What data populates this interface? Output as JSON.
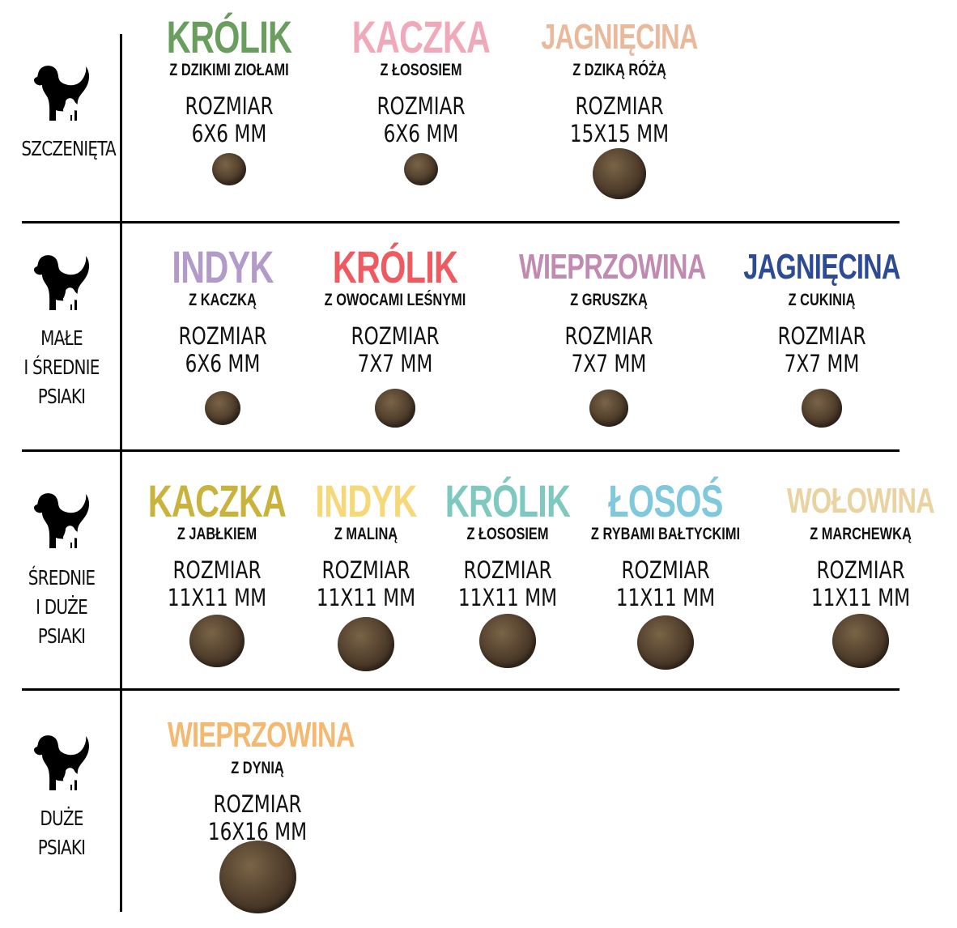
{
  "categories": [
    {
      "label_lines": [
        "SZCZENIĘTA"
      ],
      "icon": "dog-with-puppy-icon"
    },
    {
      "label_lines": [
        "MAŁE",
        "I ŚREDNIE",
        "PSIAKI"
      ],
      "icon": "dog-with-puppy-icon"
    },
    {
      "label_lines": [
        "ŚREDNIE",
        "I DUŻE",
        "PSIAKI"
      ],
      "icon": "dog-with-puppy-icon"
    },
    {
      "label_lines": [
        "DUŻE",
        "PSIAKI"
      ],
      "icon": "dog-with-puppy-icon"
    }
  ],
  "rows": [
    {
      "items": [
        {
          "name": "KRÓLIK",
          "subtitle": "Z DZIKIMI ZIOŁAMI",
          "size_label": "ROZMIAR",
          "size": "6X6 MM",
          "size_mm": 6,
          "color": "#6a9e5e"
        },
        {
          "name": "KACZKA",
          "subtitle": "Z ŁOSOSIEM",
          "size_label": "ROZMIAR",
          "size": "6X6 MM",
          "size_mm": 6,
          "color": "#f0a9ba"
        },
        {
          "name": "JAGNIĘCINA",
          "subtitle": "Z DZIKĄ RÓŻĄ",
          "size_label": "ROZMIAR",
          "size": "15X15 MM",
          "size_mm": 15,
          "color": "#e9b99c"
        }
      ]
    },
    {
      "items": [
        {
          "name": "INDYK",
          "subtitle": "Z KACZKĄ",
          "size_label": "ROZMIAR",
          "size": "6X6 MM",
          "size_mm": 6,
          "color": "#b39bc9"
        },
        {
          "name": "KRÓLIK",
          "subtitle": "Z OWOCAMI LEŚNYMI",
          "size_label": "ROZMIAR",
          "size": "7X7 MM",
          "size_mm": 7,
          "color": "#ee5a60"
        },
        {
          "name": "WIEPRZOWINA",
          "subtitle": "Z GRUSZKĄ",
          "size_label": "ROZMIAR",
          "size": "7X7 MM",
          "size_mm": 7,
          "color": "#c18bb1"
        },
        {
          "name": "JAGNIĘCINA",
          "subtitle": "Z CUKINIĄ",
          "size_label": "ROZMIAR",
          "size": "7X7 MM",
          "size_mm": 7,
          "color": "#2d4b95"
        }
      ]
    },
    {
      "items": [
        {
          "name": "KACZKA",
          "subtitle": "Z JABŁKIEM",
          "size_label": "ROZMIAR",
          "size": "11X11 MM",
          "size_mm": 11,
          "color": "#c9b33d"
        },
        {
          "name": "INDYK",
          "subtitle": "Z MALINĄ",
          "size_label": "ROZMIAR",
          "size": "11X11 MM",
          "size_mm": 11,
          "color": "#f6d879"
        },
        {
          "name": "KRÓLIK",
          "subtitle": "Z ŁOSOSIEM",
          "size_label": "ROZMIAR",
          "size": "11X11 MM",
          "size_mm": 11,
          "color": "#7dc8bf"
        },
        {
          "name": "ŁOSOŚ",
          "subtitle": "Z RYBAMI BAŁTYCKIMI",
          "size_label": "ROZMIAR",
          "size": "11X11 MM",
          "size_mm": 11,
          "color": "#80c8dc"
        },
        {
          "name": "WOŁOWINA",
          "subtitle": "Z MARCHEWKĄ",
          "size_label": "ROZMIAR",
          "size": "11X11 MM",
          "size_mm": 11,
          "color": "#e8d3a1"
        }
      ]
    },
    {
      "items": [
        {
          "name": "WIEPRZOWINA",
          "subtitle": "Z DYNIĄ",
          "size_label": "ROZMIAR",
          "size": "16X16 MM",
          "size_mm": 16,
          "color": "#f5b871"
        }
      ]
    }
  ]
}
